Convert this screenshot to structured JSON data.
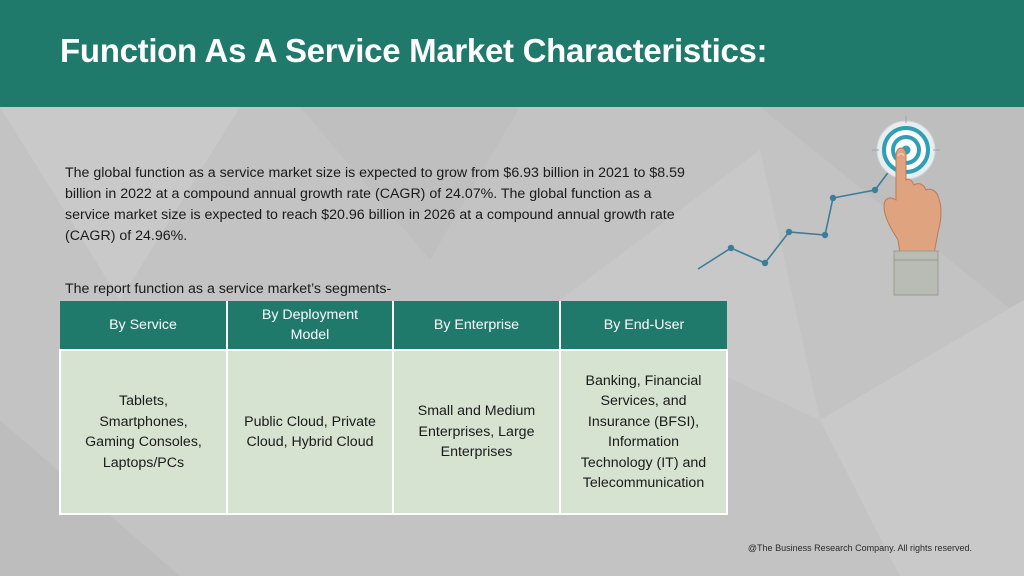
{
  "header": {
    "title": "Function As A Service Market Characteristics:"
  },
  "intro": {
    "paragraph": "The global function as a service market size is expected to grow from $6.93 billion in 2021 to $8.59 billion in 2022 at a compound annual growth rate (CAGR) of 24.07%. The global function as a service market size is expected to reach $20.96 billion in 2026 at a compound annual growth rate (CAGR) of 24.96%."
  },
  "segments": {
    "label": "The report function as a service market’s segments-",
    "columns": [
      {
        "header": "By Service",
        "content": "Tablets, Smartphones, Gaming Consoles, Laptops/PCs"
      },
      {
        "header": "By Deployment Model",
        "content": "Public Cloud, Private Cloud, Hybrid Cloud"
      },
      {
        "header": "By Enterprise",
        "content": "Small and Medium Enterprises, Large Enterprises"
      },
      {
        "header": "By End-User",
        "content": "Banking, Financial Services, and Insurance (BFSI), Information Technology (IT) and Telecommunication"
      }
    ]
  },
  "footer": {
    "copyright": "@The Business Research Company. All rights reserved."
  },
  "colors": {
    "header_bg": "#1f7a6c",
    "table_header_bg": "#1f7a6c",
    "table_cell_bg": "#d6e3d1",
    "page_bg": "#c3c3c3",
    "graph_line": "#3d7d9a"
  },
  "icons": {
    "decoration": "growth-line-graph-with-hand-touching-target-icon"
  }
}
